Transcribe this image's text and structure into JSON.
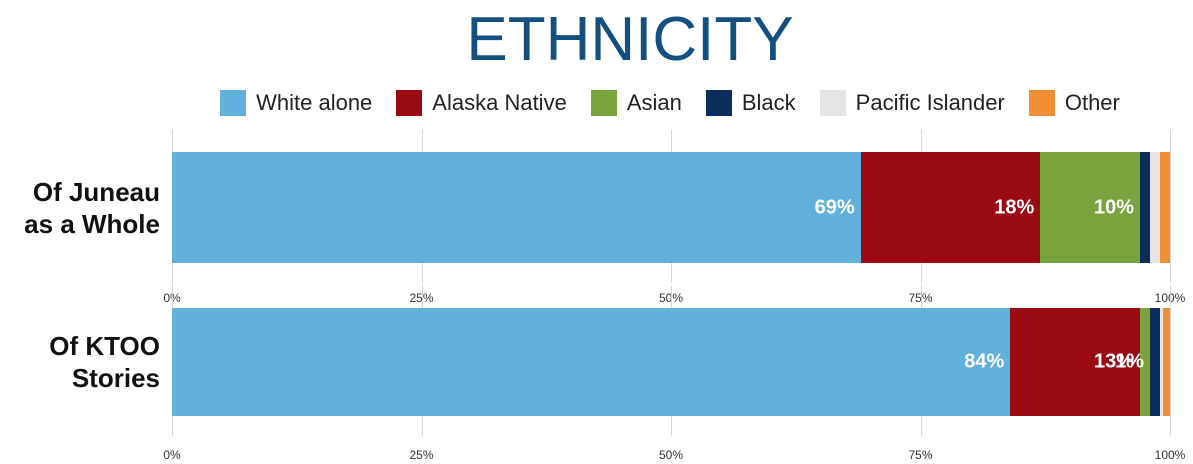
{
  "chart_data": {
    "type": "stacked_bar_horizontal",
    "title": "ETHNICITY",
    "categories": [
      "Of Juneau as a Whole",
      "Of KTOO Stories"
    ],
    "series": [
      {
        "name": "White alone",
        "color": "#62b0dc",
        "values": [
          69,
          84
        ],
        "value_labels": [
          "69%",
          "84%"
        ]
      },
      {
        "name": "Alaska Native",
        "color": "#9b0a12",
        "values": [
          18,
          13
        ],
        "value_labels": [
          "18%",
          "13%"
        ]
      },
      {
        "name": "Asian",
        "color": "#79a33c",
        "values": [
          10,
          1
        ],
        "value_labels": [
          "10%",
          "1%"
        ]
      },
      {
        "name": "Black",
        "color": "#0b2d5c",
        "values": [
          1,
          1
        ]
      },
      {
        "name": "Pacific Islander",
        "color": "#e4e4e4",
        "values": [
          1,
          0.3
        ]
      },
      {
        "name": "Other",
        "color": "#ef8e33",
        "values": [
          1,
          0.7
        ]
      }
    ],
    "xlim": [
      0,
      100
    ],
    "xticks": [
      {
        "value": 0,
        "label": "0%"
      },
      {
        "value": 25,
        "label": "25%"
      },
      {
        "value": 50,
        "label": "50%"
      },
      {
        "value": 75,
        "label": "75%"
      },
      {
        "value": 100,
        "label": "100%"
      }
    ],
    "grid": true,
    "legend": "top"
  }
}
